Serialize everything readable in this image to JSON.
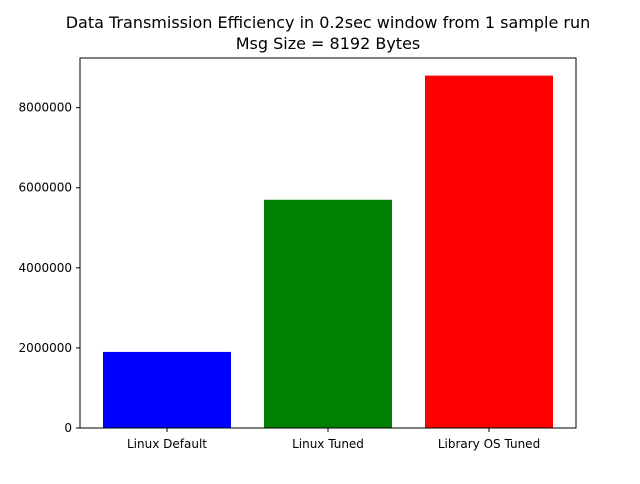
{
  "chart_data": {
    "type": "bar",
    "title": "Data Transmission Efficiency in 0.2sec window from 1 sample run",
    "subtitle": "Msg Size = 8192 Bytes",
    "xlabel": "",
    "ylabel": "",
    "categories": [
      "Linux Default",
      "Linux Tuned",
      "Library OS Tuned"
    ],
    "values": [
      1900000,
      5700000,
      8800000
    ],
    "colors": [
      "#0000ff",
      "#008000",
      "#ff0000"
    ],
    "ylim": [
      0,
      9240000
    ],
    "yticks": [
      0,
      2000000,
      4000000,
      6000000,
      8000000
    ],
    "ytick_labels": [
      "0",
      "2000000",
      "4000000",
      "6000000",
      "8000000"
    ],
    "grid": false,
    "legend": "none"
  }
}
